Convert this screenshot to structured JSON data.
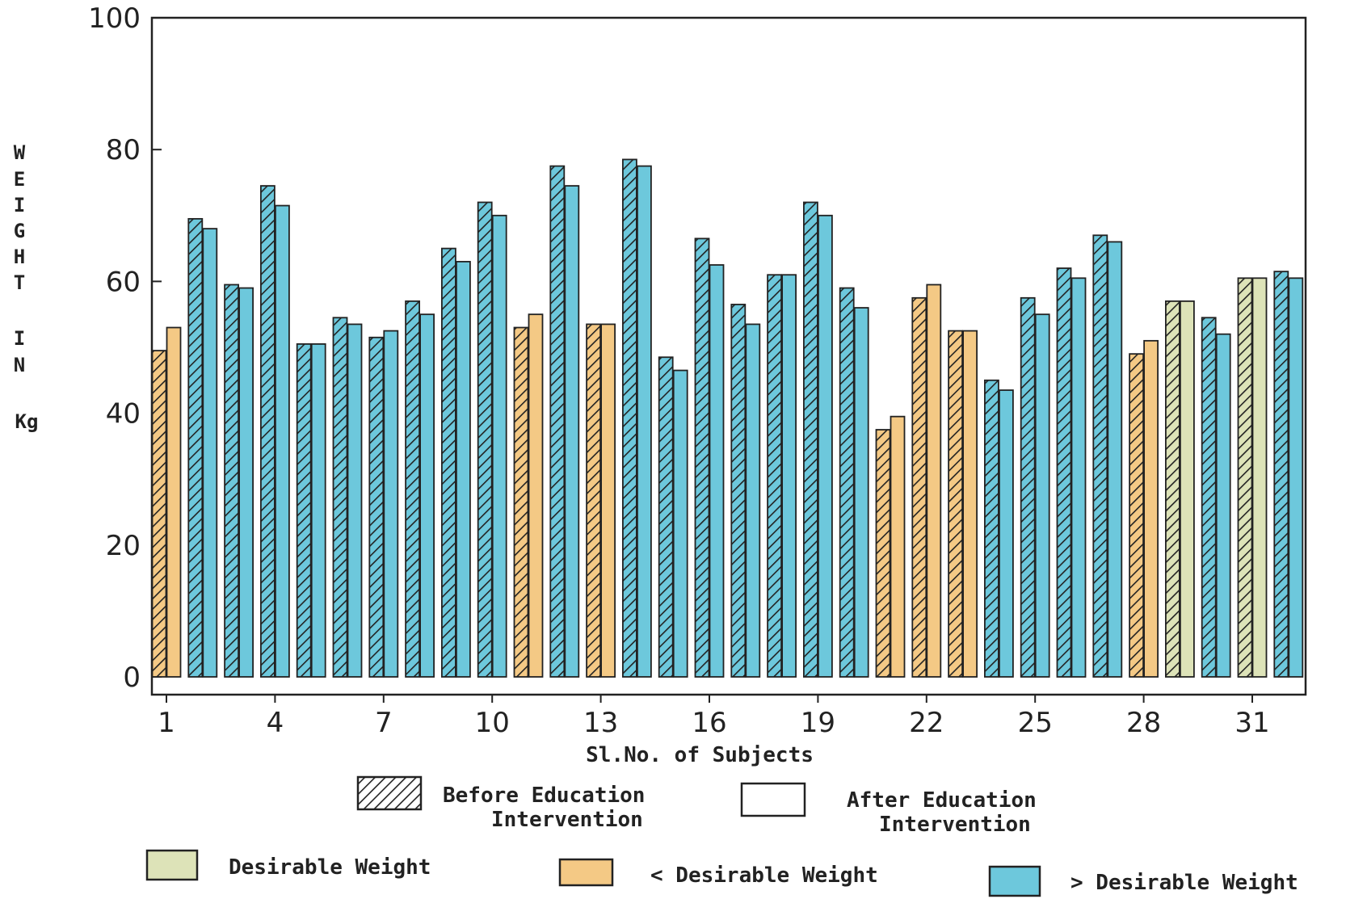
{
  "chart_data": {
    "type": "bar",
    "xlabel": "Sl.No. of Subjects",
    "ylabel": [
      "W",
      "E",
      "I",
      "G",
      "H",
      "T",
      "",
      "I",
      "N",
      "",
      "Kg"
    ],
    "ylim": [
      0,
      100
    ],
    "yticks": [
      0,
      20,
      40,
      60,
      80,
      100
    ],
    "xticks": [
      "1",
      "4",
      "7",
      "10",
      "13",
      "16",
      "19",
      "22",
      "25",
      "28",
      "31"
    ],
    "categories": [
      "1",
      "2",
      "3",
      "4",
      "5",
      "6",
      "7",
      "8",
      "9",
      "10",
      "11",
      "12",
      "13",
      "14",
      "15",
      "16",
      "17",
      "18",
      "19",
      "20",
      "21",
      "22",
      "23",
      "24",
      "25",
      "26",
      "27",
      "28",
      "29",
      "30",
      "31",
      "32"
    ],
    "series": [
      {
        "name": "Before Education Intervention",
        "values": [
          49.5,
          69.5,
          59.5,
          74.5,
          50.5,
          54.5,
          51.5,
          57,
          65,
          72,
          53,
          77.5,
          53.5,
          78.5,
          48.5,
          66.5,
          56.5,
          61,
          72,
          59,
          37.5,
          57.5,
          52.5,
          45,
          57.5,
          62,
          67,
          49,
          57,
          54.5,
          60.5,
          61.5
        ]
      },
      {
        "name": "After Education Intervention",
        "values": [
          53,
          68,
          59,
          71.5,
          50.5,
          53.5,
          52.5,
          55,
          63,
          70,
          55,
          74.5,
          53.5,
          77.5,
          46.5,
          62.5,
          53.5,
          61,
          70,
          56,
          39.5,
          59.5,
          52.5,
          43.5,
          55,
          60.5,
          66,
          51,
          57,
          52,
          60.5,
          60.5
        ]
      }
    ],
    "status": [
      "lt",
      "gt",
      "gt",
      "gt",
      "gt",
      "gt",
      "gt",
      "gt",
      "gt",
      "gt",
      "lt",
      "gt",
      "lt",
      "gt",
      "gt",
      "gt",
      "gt",
      "gt",
      "gt",
      "gt",
      "lt",
      "lt",
      "lt",
      "gt",
      "gt",
      "gt",
      "gt",
      "lt",
      "des",
      "gt",
      "des",
      "gt"
    ],
    "legend": {
      "before": "Before Education",
      "before2": "Intervention",
      "after": "After Education",
      "after2": "Intervention",
      "desirable": "Desirable Weight",
      "below": "< Desirable Weight",
      "above": "> Desirable Weight"
    },
    "colors": {
      "desirable": "#dde3b8",
      "below": "#f4c985",
      "above": "#6dc8dc"
    }
  }
}
